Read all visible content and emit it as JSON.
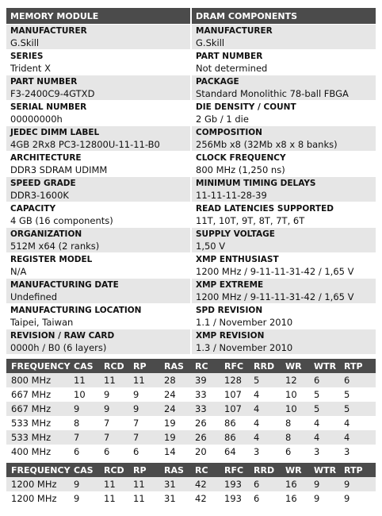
{
  "module": {
    "title": "MEMORY MODULE",
    "fields": [
      {
        "label": "MANUFACTURER",
        "value": "G.Skill"
      },
      {
        "label": "SERIES",
        "value": "Trident X"
      },
      {
        "label": "PART NUMBER",
        "value": "F3-2400C9-4GTXD"
      },
      {
        "label": "SERIAL NUMBER",
        "value": "00000000h"
      },
      {
        "label": "JEDEC DIMM LABEL",
        "value": "4GB 2Rx8 PC3-12800U-11-11-B0"
      },
      {
        "label": "ARCHITECTURE",
        "value": "DDR3 SDRAM UDIMM"
      },
      {
        "label": "SPEED GRADE",
        "value": "DDR3-1600K"
      },
      {
        "label": "CAPACITY",
        "value": "4 GB (16 components)"
      },
      {
        "label": "ORGANIZATION",
        "value": "512M x64 (2 ranks)"
      },
      {
        "label": "REGISTER MODEL",
        "value": "N/A"
      },
      {
        "label": "MANUFACTURING DATE",
        "value": "Undefined"
      },
      {
        "label": "MANUFACTURING LOCATION",
        "value": "Taipei, Taiwan"
      },
      {
        "label": "REVISION / RAW CARD",
        "value": "0000h / B0 (6 layers)"
      }
    ]
  },
  "dram": {
    "title": "DRAM COMPONENTS",
    "fields": [
      {
        "label": "MANUFACTURER",
        "value": "G.Skill"
      },
      {
        "label": "PART NUMBER",
        "value": "Not determined"
      },
      {
        "label": "PACKAGE",
        "value": "Standard Monolithic 78-ball FBGA"
      },
      {
        "label": "DIE DENSITY / COUNT",
        "value": "2 Gb / 1 die"
      },
      {
        "label": "COMPOSITION",
        "value": "256Mb x8 (32Mb x8 x 8 banks)"
      },
      {
        "label": "CLOCK FREQUENCY",
        "value": "800 MHz (1,250 ns)"
      },
      {
        "label": "MINIMUM TIMING DELAYS",
        "value": "11-11-11-28-39"
      },
      {
        "label": "READ LATENCIES SUPPORTED",
        "value": "11T, 10T, 9T, 8T, 7T, 6T"
      },
      {
        "label": "SUPPLY VOLTAGE",
        "value": "1,50 V"
      },
      {
        "label": "XMP ENTHUSIAST",
        "value": "1200 MHz / 9-11-11-31-42 / 1,65 V"
      },
      {
        "label": "XMP EXTREME",
        "value": "1200 MHz / 9-11-11-31-42 / 1,65 V"
      },
      {
        "label": "SPD REVISION",
        "value": "1.1 / November 2010"
      },
      {
        "label": "XMP REVISION",
        "value": "1.3 / November 2010"
      }
    ]
  },
  "timings": [
    {
      "header": [
        "FREQUENCY",
        "CAS",
        "RCD",
        "RP",
        "RAS",
        "RC",
        "RFC",
        "RRD",
        "WR",
        "WTR",
        "RTP"
      ],
      "rows": [
        [
          "800 MHz",
          "11",
          "11",
          "11",
          "28",
          "39",
          "128",
          "5",
          "12",
          "6",
          "6"
        ],
        [
          "667 MHz",
          "10",
          "9",
          "9",
          "24",
          "33",
          "107",
          "4",
          "10",
          "5",
          "5"
        ],
        [
          "667 MHz",
          "9",
          "9",
          "9",
          "24",
          "33",
          "107",
          "4",
          "10",
          "5",
          "5"
        ],
        [
          "533 MHz",
          "8",
          "7",
          "7",
          "19",
          "26",
          "86",
          "4",
          "8",
          "4",
          "4"
        ],
        [
          "533 MHz",
          "7",
          "7",
          "7",
          "19",
          "26",
          "86",
          "4",
          "8",
          "4",
          "4"
        ],
        [
          "400 MHz",
          "6",
          "6",
          "6",
          "14",
          "20",
          "64",
          "3",
          "6",
          "3",
          "3"
        ]
      ]
    },
    {
      "header": [
        "FREQUENCY",
        "CAS",
        "RCD",
        "RP",
        "RAS",
        "RC",
        "RFC",
        "RRD",
        "WR",
        "WTR",
        "RTP"
      ],
      "rows": [
        [
          "1200 MHz",
          "9",
          "11",
          "11",
          "31",
          "42",
          "193",
          "6",
          "16",
          "9",
          "9"
        ],
        [
          "1200 MHz",
          "9",
          "11",
          "11",
          "31",
          "42",
          "193",
          "6",
          "16",
          "9",
          "9"
        ]
      ]
    }
  ]
}
